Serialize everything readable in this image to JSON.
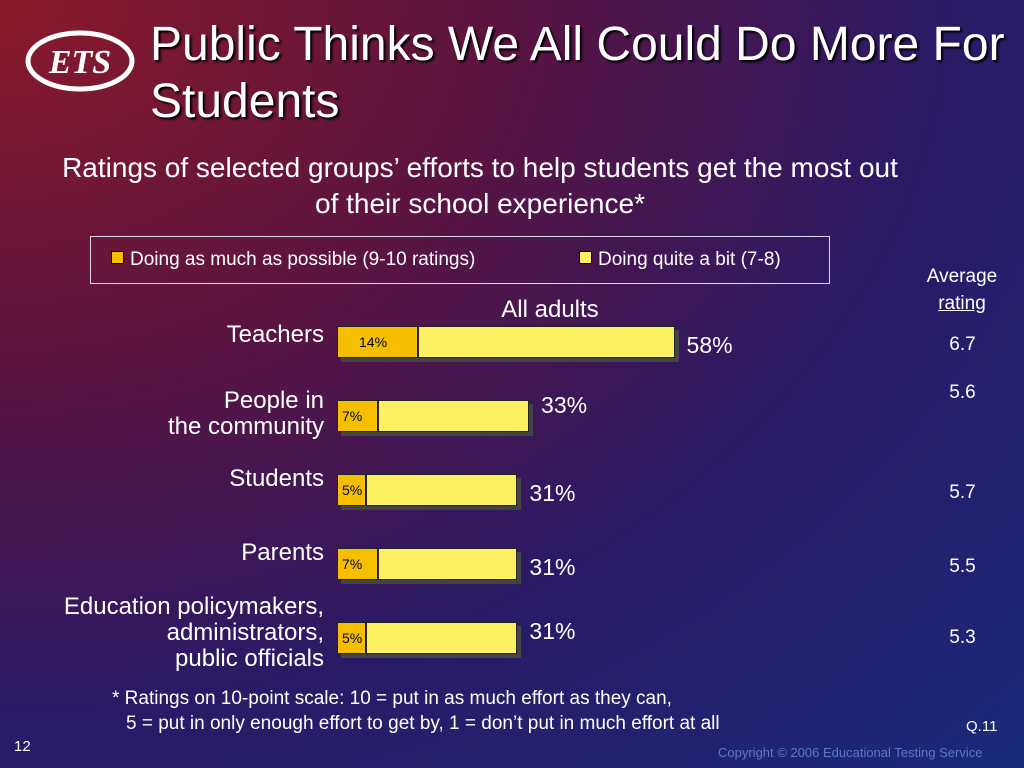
{
  "logo": {
    "text": "ETS"
  },
  "title": "Public Thinks We All Could Do More For Students",
  "chart_data": {
    "type": "bar",
    "orientation": "horizontal",
    "stacked": true,
    "title": "Ratings of selected groups’ efforts to help students get the most out of their school experience*",
    "group_label": "All adults",
    "legend": [
      {
        "name": "Doing as much as possible (9-10 ratings)",
        "color": "#f5bf00"
      },
      {
        "name": "Doing quite a bit (7-8)",
        "color": "#fdf060"
      }
    ],
    "categories": [
      "Teachers",
      "People in\nthe community",
      "Students",
      "Parents",
      "Education policymakers,\nadministrators,\npublic officials"
    ],
    "series": [
      {
        "name": "Doing as much as possible (9-10 ratings)",
        "values": [
          14,
          7,
          5,
          7,
          5
        ],
        "labels": [
          "14%",
          "7%",
          "5%",
          "7%",
          "5%"
        ]
      },
      {
        "name": "Doing quite a bit (7-8)",
        "values": [
          44,
          26,
          26,
          24,
          26
        ]
      }
    ],
    "totals": [
      58,
      33,
      31,
      31,
      31
    ],
    "total_labels": [
      "58%",
      "33%",
      "31%",
      "31%",
      "31%"
    ],
    "average_header": [
      "Average",
      "rating"
    ],
    "average_ratings": [
      "6.7",
      "5.6",
      "5.7",
      "5.5",
      "5.3"
    ],
    "xlim": [
      0,
      100
    ]
  },
  "footnote": [
    "* Ratings on 10-point scale:  10 = put in as much effort as they can,",
    "5 = put in only enough effort to get by, 1 = don’t put in much effort at all"
  ],
  "question_ref": "Q.11",
  "page_number": "12",
  "copyright": "Copyright © 2006 Educational Testing Service"
}
